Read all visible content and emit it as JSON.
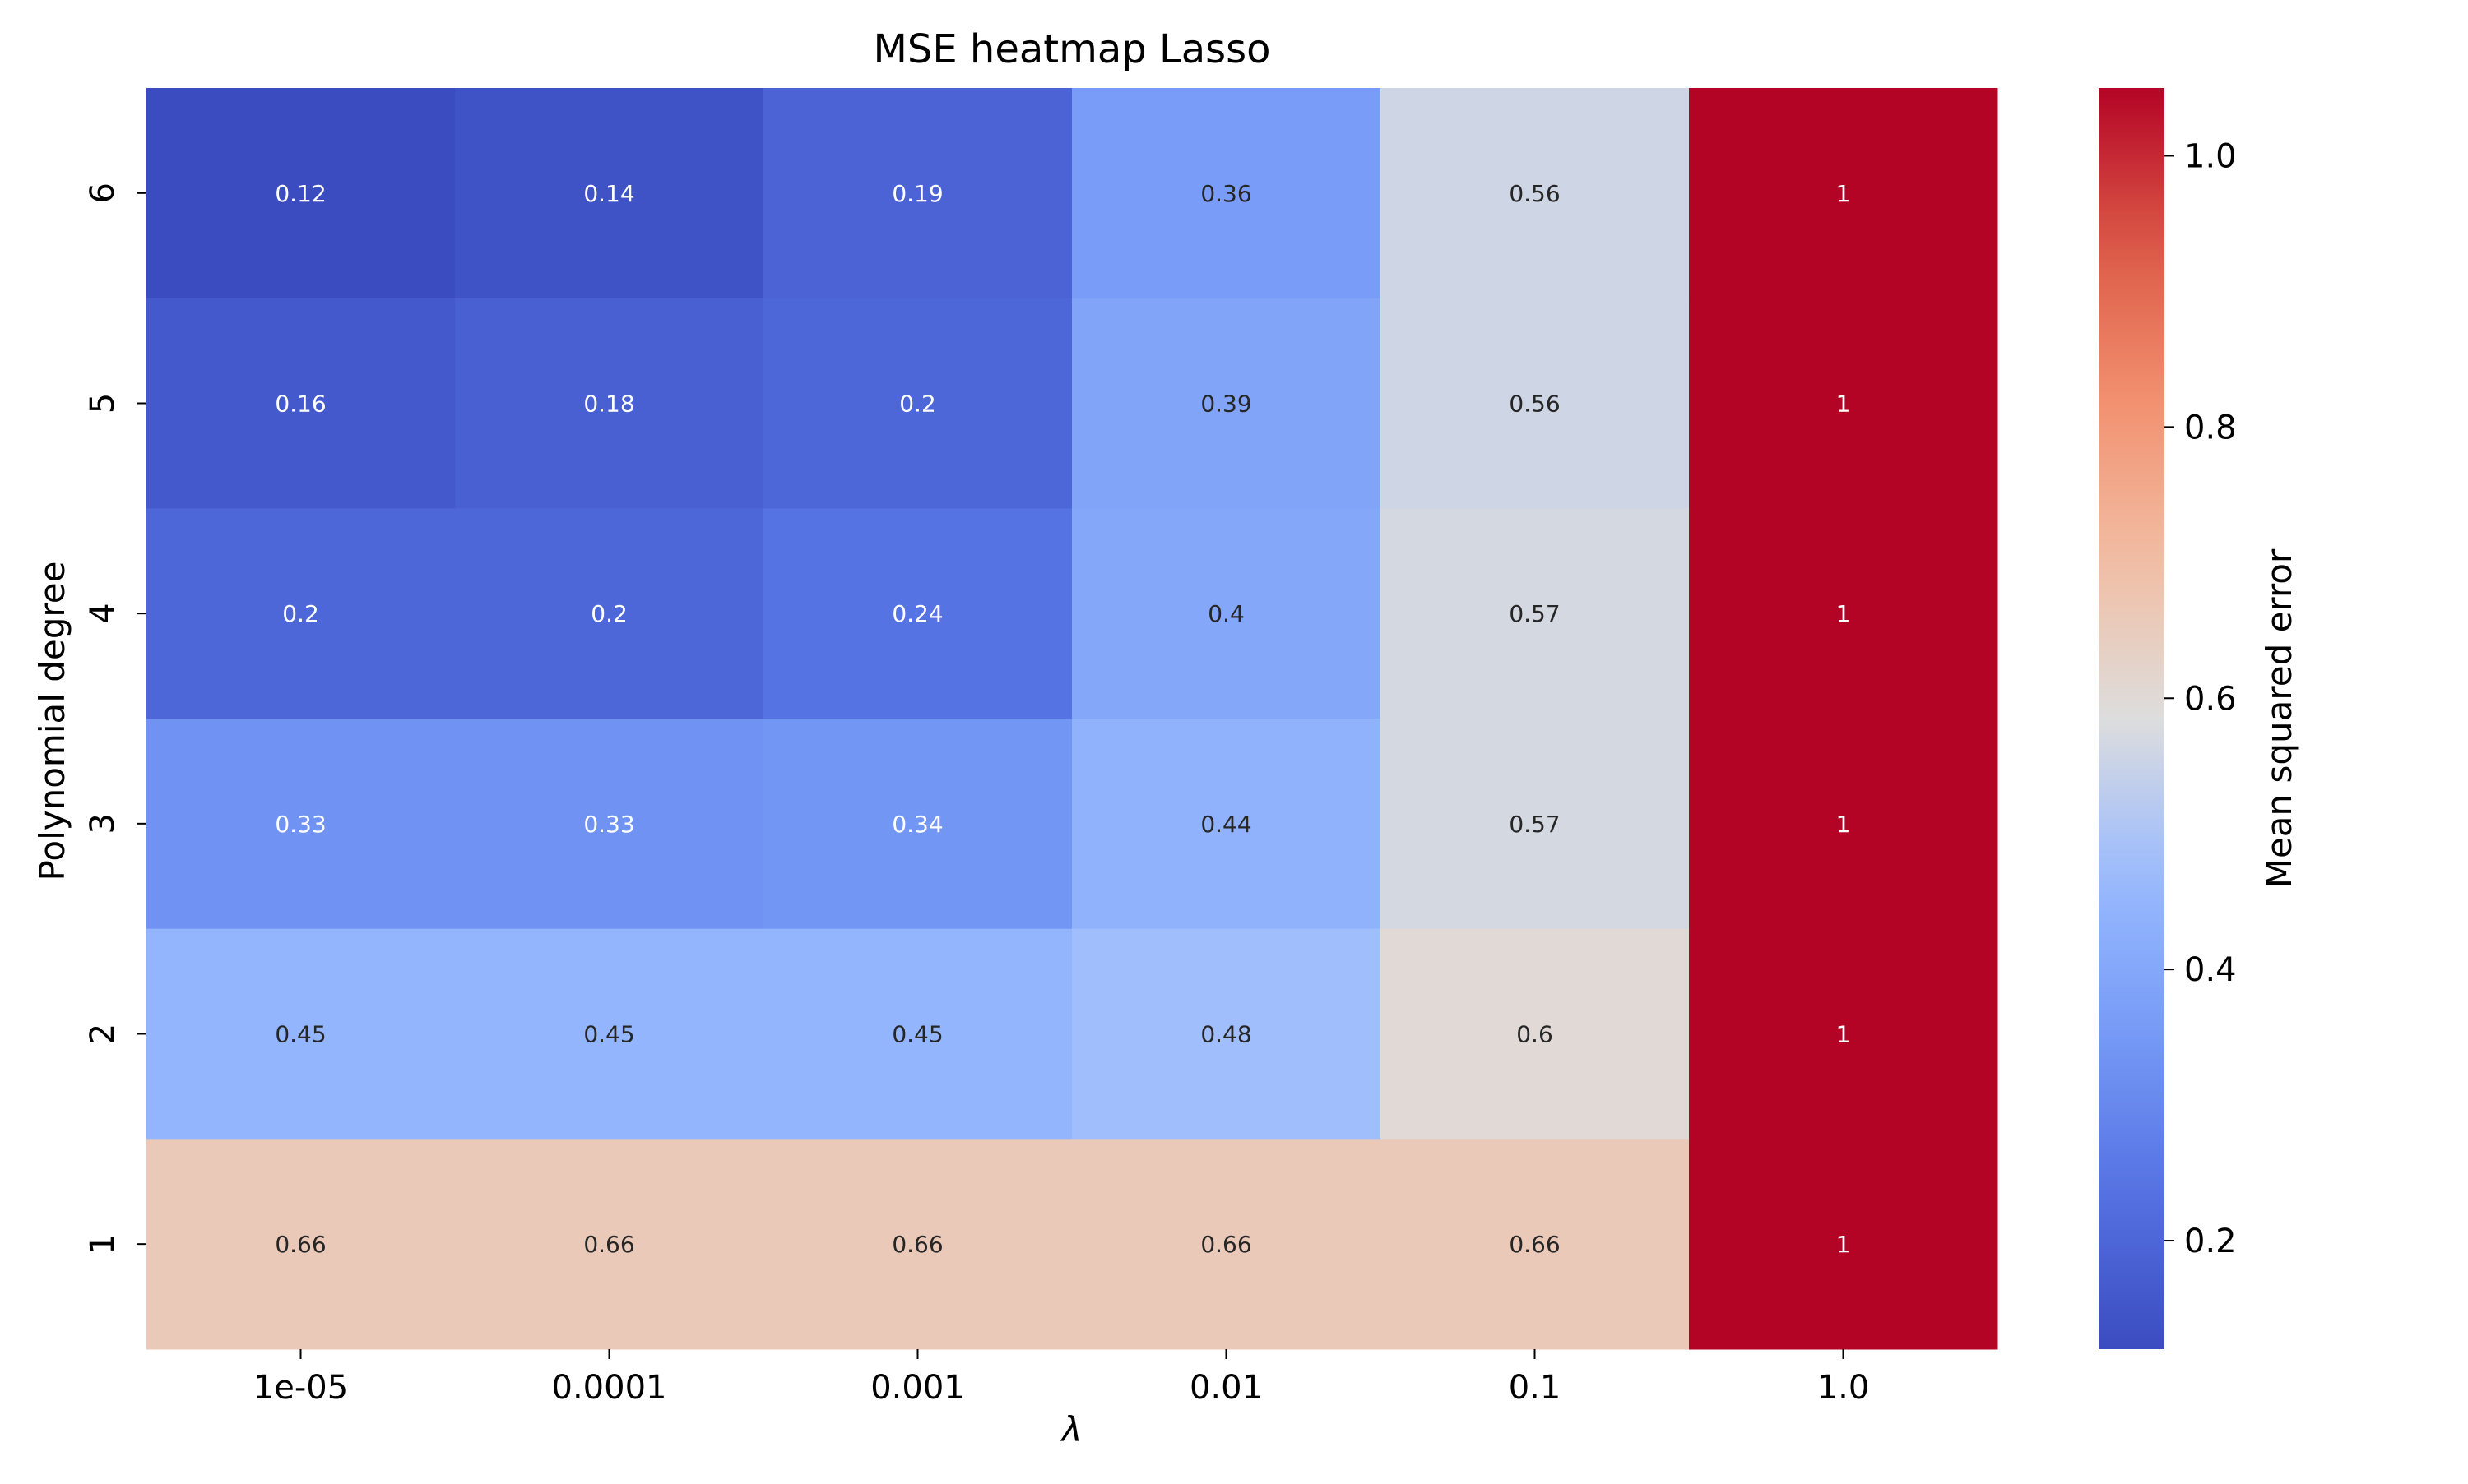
{
  "chart_data": {
    "type": "heatmap",
    "title": "MSE heatmap Lasso",
    "xlabel": "λ",
    "ylabel": "Polynomial degree",
    "x_categories": [
      "1e-05",
      "0.0001",
      "0.001",
      "0.01",
      "0.1",
      "1.0"
    ],
    "y_categories": [
      "6",
      "5",
      "4",
      "3",
      "2",
      "1"
    ],
    "values": [
      [
        0.12,
        0.14,
        0.19,
        0.36,
        0.56,
        1.05
      ],
      [
        0.16,
        0.18,
        0.2,
        0.39,
        0.56,
        1.05
      ],
      [
        0.2,
        0.2,
        0.24,
        0.4,
        0.57,
        1.05
      ],
      [
        0.33,
        0.33,
        0.34,
        0.44,
        0.57,
        1.05
      ],
      [
        0.45,
        0.45,
        0.45,
        0.48,
        0.6,
        1.05
      ],
      [
        0.66,
        0.66,
        0.66,
        0.66,
        0.66,
        1.05
      ]
    ],
    "annotations": [
      [
        "0.12",
        "0.14",
        "0.19",
        "0.36",
        "0.56",
        "1"
      ],
      [
        "0.16",
        "0.18",
        "0.2",
        "0.39",
        "0.56",
        "1"
      ],
      [
        "0.2",
        "0.2",
        "0.24",
        "0.4",
        "0.57",
        "1"
      ],
      [
        "0.33",
        "0.33",
        "0.34",
        "0.44",
        "0.57",
        "1"
      ],
      [
        "0.45",
        "0.45",
        "0.45",
        "0.48",
        "0.6",
        "1"
      ],
      [
        "0.66",
        "0.66",
        "0.66",
        "0.66",
        "0.66",
        "1"
      ]
    ],
    "colormap": "coolwarm",
    "colorbar": {
      "label": "Mean squared error",
      "range": [
        0.12,
        1.05
      ],
      "ticks": [
        0.2,
        0.4,
        0.6,
        0.8,
        1.0
      ],
      "tick_labels": [
        "0.2",
        "0.4",
        "0.6",
        "0.8",
        "1.0"
      ]
    },
    "grid": false
  }
}
